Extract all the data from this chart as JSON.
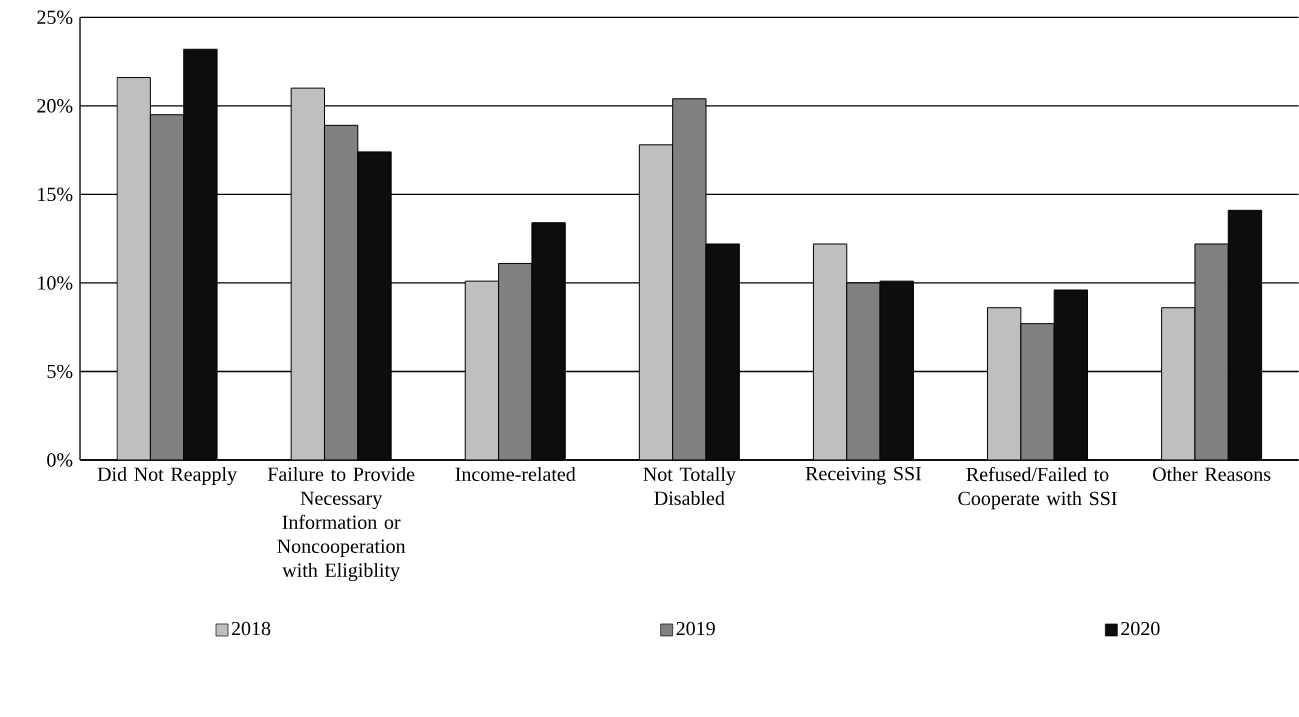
{
  "chart_data": {
    "type": "bar",
    "categories": [
      "Did Not Reapply",
      "Failure to Provide Necessary Information or Noncooperation with Eligiblity",
      "Income-related",
      "Not Totally Disabled",
      "Receiving SSI",
      "Refused/Failed to Cooperate with SSI",
      "Other Reasons"
    ],
    "series": [
      {
        "name": "2018",
        "color": "#bfbfbf",
        "values": [
          21.6,
          21.0,
          10.1,
          17.8,
          12.2,
          8.6,
          8.6
        ]
      },
      {
        "name": "2019",
        "color": "#808080",
        "values": [
          19.5,
          18.9,
          11.1,
          20.4,
          10.0,
          7.7,
          12.2
        ]
      },
      {
        "name": "2020",
        "color": "#0d0d0d",
        "values": [
          23.2,
          17.4,
          13.4,
          12.2,
          10.1,
          9.6,
          14.1
        ]
      }
    ],
    "ylim": [
      0,
      25
    ],
    "yticks": [
      {
        "value": 0,
        "label": "0%"
      },
      {
        "value": 5,
        "label": "5%"
      },
      {
        "value": 10,
        "label": "10%"
      },
      {
        "value": 15,
        "label": "15%"
      },
      {
        "value": 20,
        "label": "20%"
      },
      {
        "value": 25,
        "label": "25%"
      }
    ],
    "grid": "y",
    "legend": "bottom"
  }
}
